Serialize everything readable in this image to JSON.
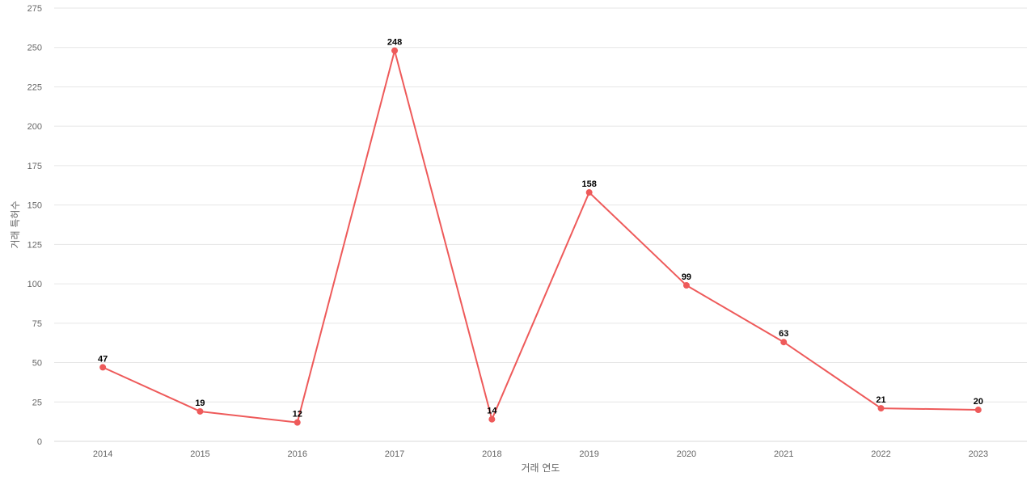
{
  "chart_data": {
    "type": "line",
    "title": "",
    "xlabel": "거래 연도",
    "ylabel": "거래 특허수",
    "categories": [
      "2014",
      "2015",
      "2016",
      "2017",
      "2018",
      "2019",
      "2020",
      "2021",
      "2022",
      "2023"
    ],
    "series": [
      {
        "values": [
          47,
          19,
          12,
          248,
          14,
          158,
          99,
          63,
          21,
          20
        ],
        "color": "#ee5a5a"
      }
    ],
    "ylim": [
      0,
      275
    ],
    "yticks": [
      0,
      25,
      50,
      75,
      100,
      125,
      150,
      175,
      200,
      225,
      250,
      275
    ],
    "grid": true,
    "legend": "none",
    "data_labels": true
  }
}
